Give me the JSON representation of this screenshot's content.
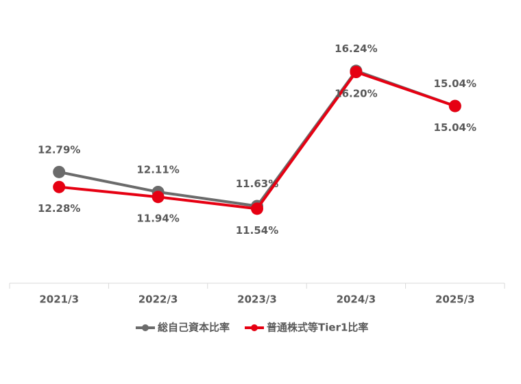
{
  "chart_data": {
    "type": "line",
    "categories": [
      "2021/3",
      "2022/3",
      "2023/3",
      "2024/3",
      "2025/3"
    ],
    "series": [
      {
        "name": "総自己資本比率",
        "color": "#6b6b6b",
        "values": [
          12.79,
          12.11,
          11.63,
          16.24,
          15.04
        ],
        "value_labels": [
          "12.79%",
          "12.11%",
          "11.63%",
          "16.24%",
          "15.04%"
        ]
      },
      {
        "name": "普通株式等Tier1比率",
        "color": "#e60012",
        "values": [
          12.28,
          11.94,
          11.54,
          16.2,
          15.04
        ],
        "value_labels": [
          "12.28%",
          "11.94%",
          "11.54%",
          "16.20%",
          "15.04%"
        ]
      }
    ],
    "ylim": [
      9,
      18
    ],
    "grid": false
  }
}
